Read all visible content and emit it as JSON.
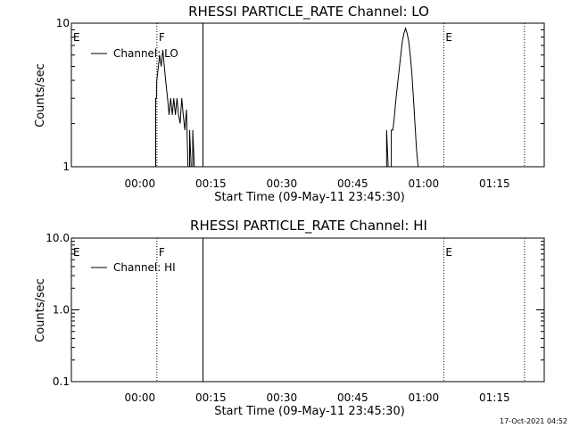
{
  "chart_data": [
    {
      "type": "line",
      "title": "RHESSI PARTICLE_RATE Channel: LO",
      "xlabel": "Start Time (09-May-11 23:45:30)",
      "ylabel": "Counts/sec",
      "y_scale": "log",
      "ylim": [
        1,
        10
      ],
      "xlim": [
        "23:45:30",
        "01:25:30"
      ],
      "x_ticks": [
        "00:00",
        "00:15",
        "00:30",
        "00:45",
        "01:00",
        "01:15"
      ],
      "y_ticks": [
        "1",
        "10"
      ],
      "legend": {
        "position": "top-left",
        "entries": [
          "Channel: LO"
        ]
      },
      "series": [
        {
          "name": "Channel: LO",
          "points": [
            [
              "00:03:20",
              1
            ],
            [
              "00:03:20",
              3
            ],
            [
              "00:03:30",
              3
            ],
            [
              "00:03:30",
              3.8
            ],
            [
              "00:03:50",
              4.8
            ],
            [
              "00:04:10",
              6
            ],
            [
              "00:04:30",
              5
            ],
            [
              "00:04:50",
              6.5
            ],
            [
              "00:05:10",
              5
            ],
            [
              "00:05:30",
              3.8
            ],
            [
              "00:05:50",
              3
            ],
            [
              "00:06:10",
              2.3
            ],
            [
              "00:06:30",
              3
            ],
            [
              "00:06:50",
              2.3
            ],
            [
              "00:07:10",
              3
            ],
            [
              "00:07:30",
              2.3
            ],
            [
              "00:07:50",
              3
            ],
            [
              "00:08:10",
              2.3
            ],
            [
              "00:08:30",
              2
            ],
            [
              "00:08:50",
              3
            ],
            [
              "00:09:10",
              2.3
            ],
            [
              "00:09:30",
              1.8
            ],
            [
              "00:09:50",
              2.5
            ],
            [
              "00:10:10",
              1
            ],
            [
              "00:10:30",
              1
            ],
            [
              "00:10:30",
              1.8
            ],
            [
              "00:10:50",
              1
            ],
            [
              "00:11:10",
              1
            ],
            [
              "00:11:10",
              1.8
            ],
            [
              "00:11:30",
              1
            ],
            [
              "00:52:10",
              1
            ],
            [
              "00:52:10",
              1.8
            ],
            [
              "00:52:30",
              1
            ],
            [
              "00:53:10",
              1
            ],
            [
              "00:53:10",
              1.8
            ],
            [
              "00:53:30",
              1.8
            ],
            [
              "00:53:50",
              2.3
            ],
            [
              "00:54:10",
              3
            ],
            [
              "00:54:30",
              3.8
            ],
            [
              "00:54:50",
              4.8
            ],
            [
              "00:55:10",
              6
            ],
            [
              "00:55:30",
              7.5
            ],
            [
              "00:55:50",
              8.5
            ],
            [
              "00:56:10",
              9.2
            ],
            [
              "00:56:30",
              8.5
            ],
            [
              "00:56:50",
              7.5
            ],
            [
              "00:57:10",
              6
            ],
            [
              "00:57:30",
              4.5
            ],
            [
              "00:57:50",
              3
            ],
            [
              "00:58:10",
              2
            ],
            [
              "00:58:30",
              1.3
            ],
            [
              "00:58:50",
              1
            ]
          ]
        }
      ],
      "markers": [
        {
          "label": "E",
          "time": "23:45:30",
          "style": "dotted"
        },
        {
          "label": "F",
          "time": "00:03:35",
          "style": "dotted"
        },
        {
          "label": "",
          "time": "00:13:20",
          "style": "solid"
        },
        {
          "label": "E",
          "time": "01:04:15",
          "style": "dotted"
        },
        {
          "label": "",
          "time": "01:21:20",
          "style": "dotted"
        }
      ]
    },
    {
      "type": "line",
      "title": "RHESSI PARTICLE_RATE Channel: HI",
      "xlabel": "Start Time (09-May-11 23:45:30)",
      "ylabel": "Counts/sec",
      "y_scale": "log",
      "ylim": [
        0.1,
        10
      ],
      "xlim": [
        "23:45:30",
        "01:25:30"
      ],
      "x_ticks": [
        "00:00",
        "00:15",
        "00:30",
        "00:45",
        "01:00",
        "01:15"
      ],
      "y_ticks": [
        "0.1",
        "1.0",
        "10.0"
      ],
      "legend": {
        "position": "top-left",
        "entries": [
          "Channel: HI"
        ]
      },
      "series": [
        {
          "name": "Channel: HI",
          "points": []
        }
      ],
      "markers": [
        {
          "label": "E",
          "time": "23:45:30",
          "style": "dotted"
        },
        {
          "label": "F",
          "time": "00:03:35",
          "style": "dotted"
        },
        {
          "label": "",
          "time": "00:13:20",
          "style": "solid"
        },
        {
          "label": "E",
          "time": "01:04:15",
          "style": "dotted"
        },
        {
          "label": "",
          "time": "01:21:20",
          "style": "dotted"
        }
      ]
    }
  ],
  "footer": {
    "timestamp": "17-Oct-2021 04:52"
  }
}
